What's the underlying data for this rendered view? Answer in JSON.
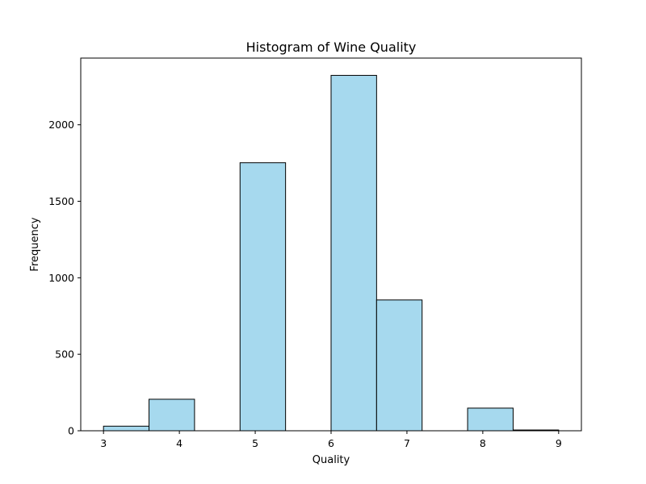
{
  "chart_data": {
    "type": "bar",
    "histogram": true,
    "title": "Histogram of Wine Quality",
    "xlabel": "Quality",
    "ylabel": "Frequency",
    "xlim": [
      2.7,
      9.3
    ],
    "ylim": [
      0,
      2436
    ],
    "xticks": [
      3,
      4,
      5,
      6,
      7,
      8,
      9
    ],
    "yticks": [
      0,
      500,
      1000,
      1500,
      2000
    ],
    "bins": [
      {
        "start": 3.0,
        "end": 3.6,
        "count": 30
      },
      {
        "start": 3.6,
        "end": 4.2,
        "count": 206
      },
      {
        "start": 4.2,
        "end": 4.8,
        "count": 0
      },
      {
        "start": 4.8,
        "end": 5.4,
        "count": 1752
      },
      {
        "start": 5.4,
        "end": 6.0,
        "count": 0
      },
      {
        "start": 6.0,
        "end": 6.6,
        "count": 2323
      },
      {
        "start": 6.6,
        "end": 7.2,
        "count": 855
      },
      {
        "start": 7.2,
        "end": 7.8,
        "count": 0
      },
      {
        "start": 7.8,
        "end": 8.4,
        "count": 148
      },
      {
        "start": 8.4,
        "end": 9.0,
        "count": 5
      }
    ],
    "bar_color": "#a6d9ee",
    "edge_color": "#000000",
    "grid": false
  }
}
